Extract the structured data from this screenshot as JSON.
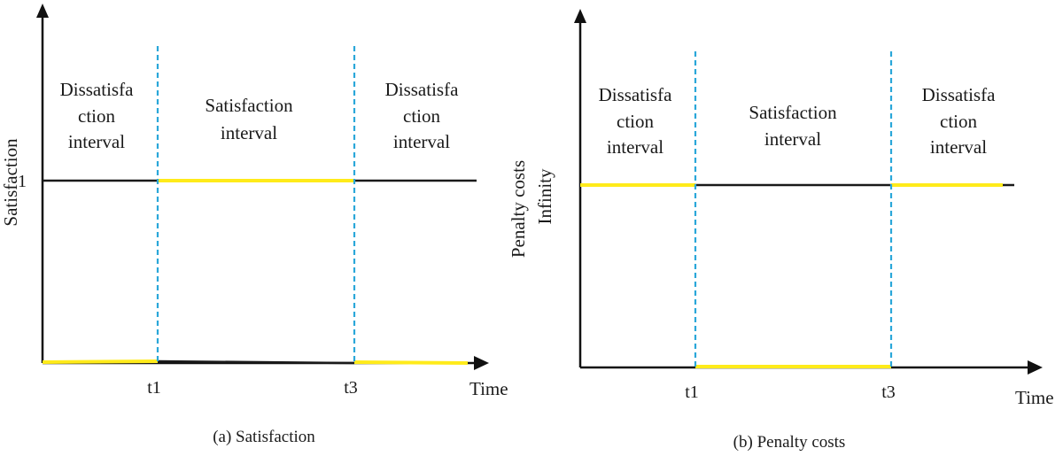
{
  "colors": {
    "axis": "#111111",
    "level": "#1a1a1a",
    "highlight": "#ffeb1a",
    "divider": "#2aa7d9"
  },
  "panel_a": {
    "ylabel": "Satisfaction",
    "ytick": "1",
    "xlabel": "Time",
    "ticks": [
      "t1",
      "t3"
    ],
    "caption": "(a) Satisfaction",
    "left_interval": [
      "Dissatisfa",
      "ction",
      "interval"
    ],
    "mid_interval": [
      "Satisfaction",
      "interval"
    ],
    "right_interval": [
      "Dissatisfa",
      "ction",
      "interval"
    ]
  },
  "panel_b": {
    "ylabel_line1": "Penalty costs",
    "ylabel_line2": "Infinity",
    "xlabel": "Time",
    "ticks": [
      "t1",
      "t3"
    ],
    "caption": "(b) Penalty costs",
    "left_interval": [
      "Dissatisfa",
      "ction",
      "interval"
    ],
    "mid_interval": [
      "Satisfaction",
      "interval"
    ],
    "right_interval": [
      "Dissatisfa",
      "ction",
      "interval"
    ]
  }
}
